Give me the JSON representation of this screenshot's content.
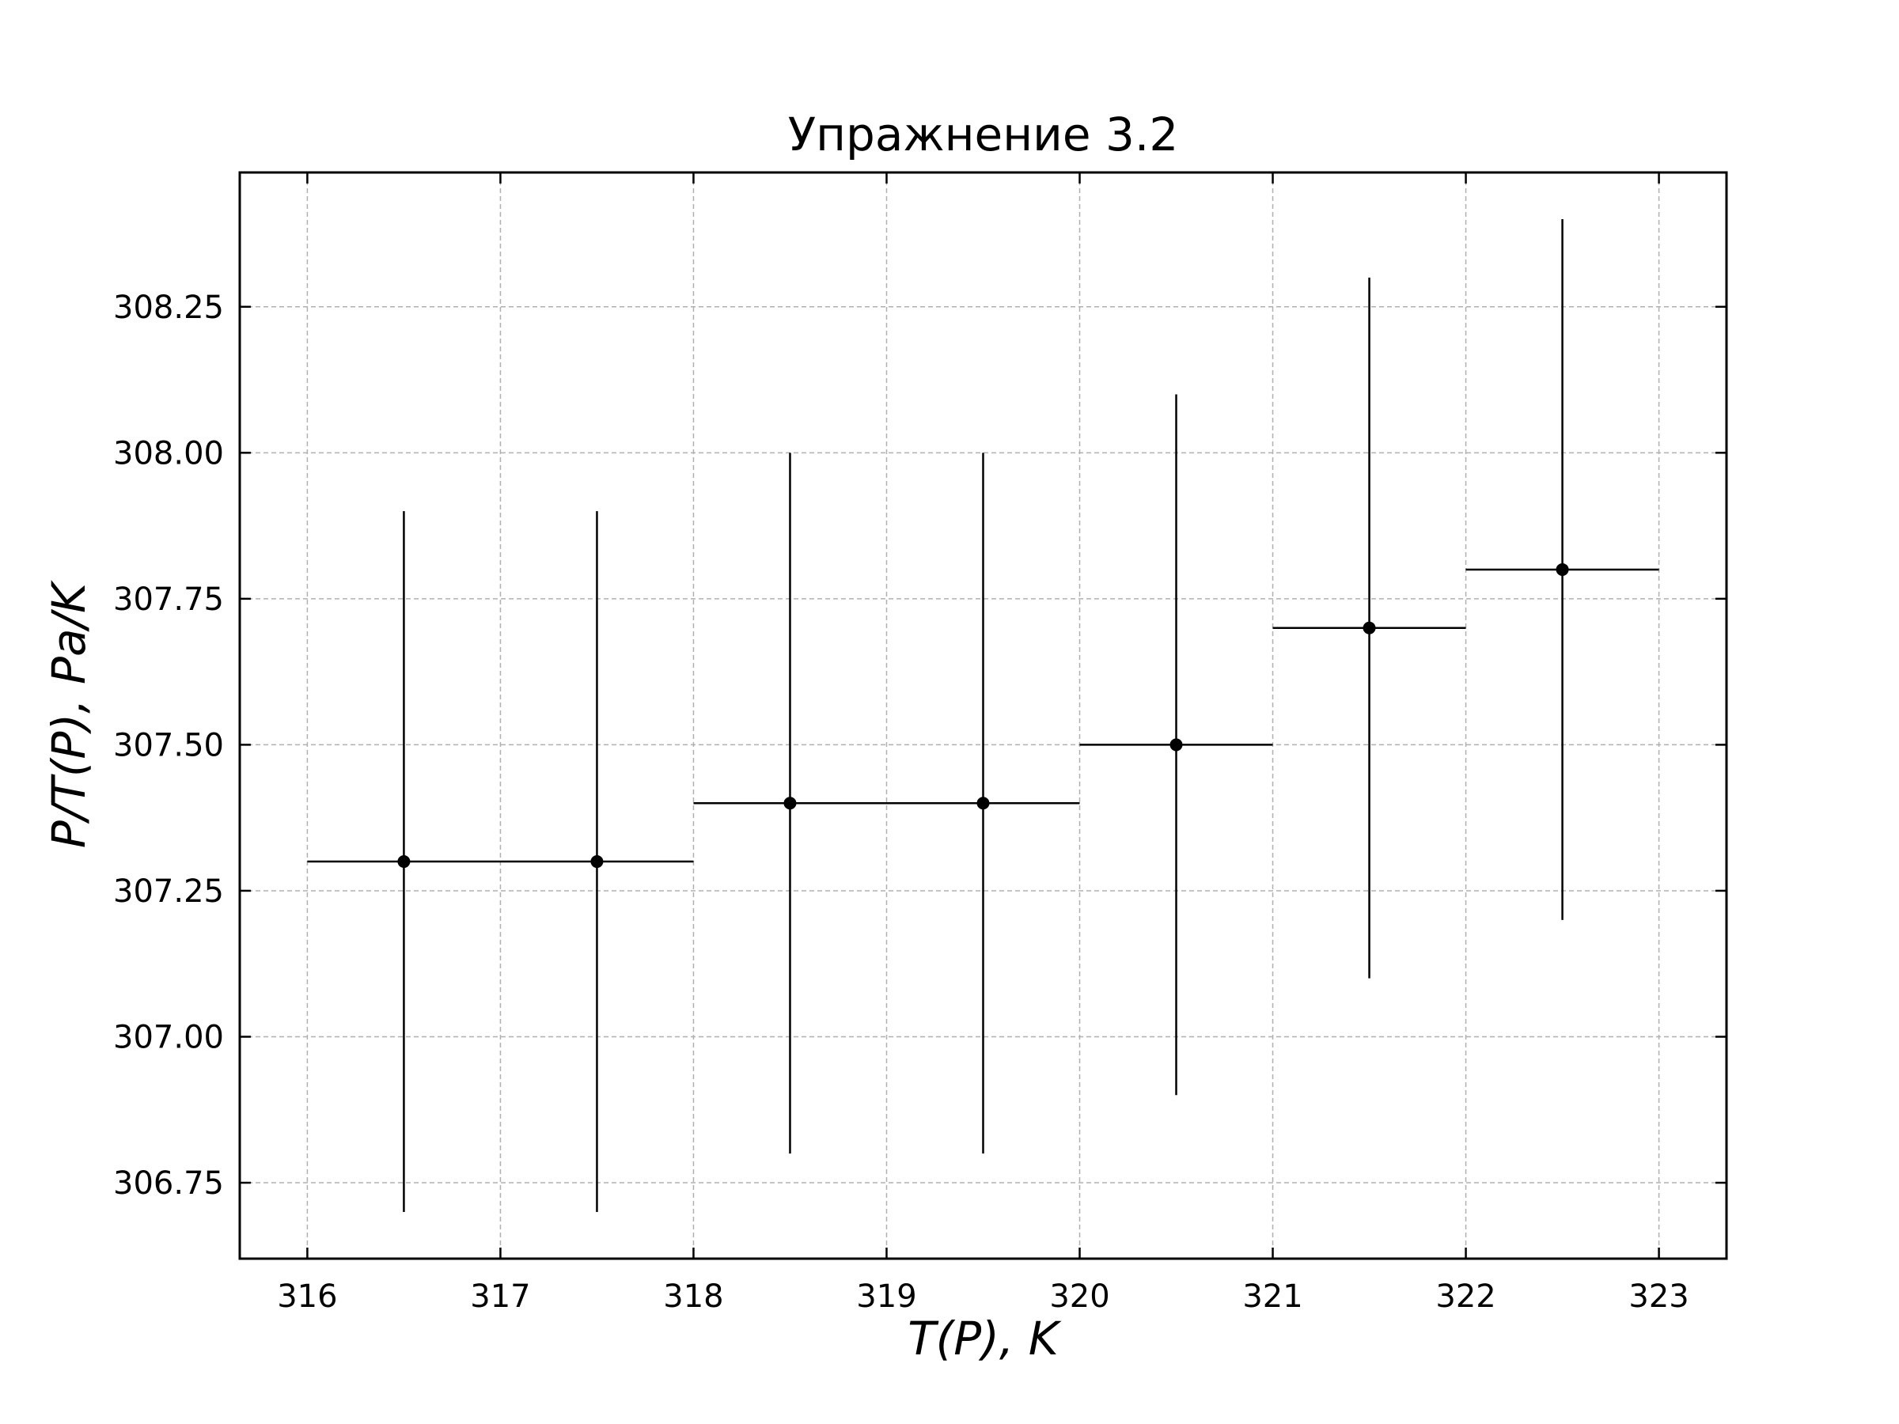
{
  "chart_data": {
    "type": "scatter",
    "title": "Упражнение 3.2",
    "xlabel": "T(P), K",
    "ylabel": "P/T(P), Pa/K",
    "xlim": [
      315.65,
      323.35
    ],
    "ylim": [
      306.62,
      308.48
    ],
    "x_ticks": [
      316,
      317,
      318,
      319,
      320,
      321,
      322,
      323
    ],
    "x_tick_labels": [
      "316",
      "317",
      "318",
      "319",
      "320",
      "321",
      "322",
      "323"
    ],
    "y_ticks": [
      306.75,
      307.0,
      307.25,
      307.5,
      307.75,
      308.0,
      308.25
    ],
    "y_tick_labels": [
      "306.75",
      "307.00",
      "307.25",
      "307.50",
      "307.75",
      "308.00",
      "308.25"
    ],
    "grid": true,
    "tick_direction": "in",
    "series": [
      {
        "x": [
          316.5,
          317.5,
          318.5,
          319.5,
          320.5,
          321.5,
          322.5
        ],
        "y": [
          307.3,
          307.3,
          307.4,
          307.4,
          307.5,
          307.7,
          307.8
        ],
        "x_err": [
          0.5,
          0.5,
          0.5,
          0.5,
          0.5,
          0.5,
          0.5
        ],
        "y_err": [
          0.6,
          0.6,
          0.6,
          0.6,
          0.6,
          0.6,
          0.6
        ],
        "color": "#000000"
      }
    ]
  }
}
